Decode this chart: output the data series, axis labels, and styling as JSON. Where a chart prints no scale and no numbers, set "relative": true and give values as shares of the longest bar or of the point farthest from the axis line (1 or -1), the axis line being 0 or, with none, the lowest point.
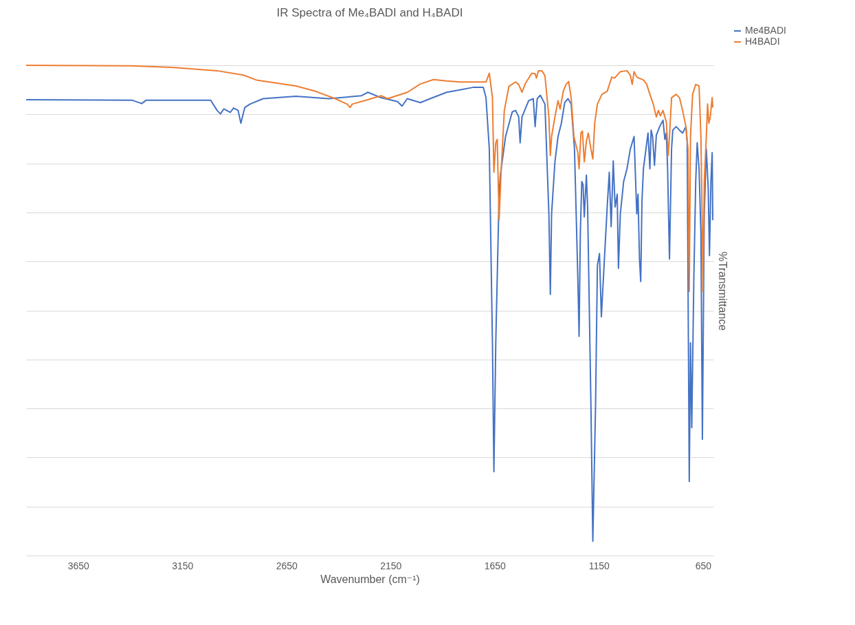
{
  "chart_data": {
    "type": "line",
    "title": "IR Spectra of Me₄BADI and H₄BADI",
    "xlabel": "Wavenumber (cm⁻¹)",
    "ylabel": "%Transmittance",
    "relative": true,
    "grid": "y",
    "legend": "right",
    "xlim": [
      3900,
      600
    ],
    "xticks": [
      3650,
      3150,
      2650,
      2150,
      1650,
      1150,
      650
    ],
    "series": [
      {
        "name": "Me4BADI",
        "color": "#4472c4",
        "x": [
          3900,
          3392,
          3345,
          3323,
          3014,
          2983,
          2967,
          2951,
          2920,
          2904,
          2882,
          2869,
          2850,
          2825,
          2762,
          2605,
          2447,
          2290,
          2259,
          2196,
          2117,
          2095,
          2070,
          2007,
          1960,
          1881,
          1818,
          1755,
          1705,
          1692,
          1676,
          1661,
          1654,
          1645,
          1629,
          1623,
          1598,
          1566,
          1550,
          1535,
          1528,
          1519,
          1487,
          1465,
          1456,
          1446,
          1431,
          1409,
          1390,
          1383,
          1377,
          1361,
          1346,
          1330,
          1314,
          1298,
          1283,
          1267,
          1251,
          1245,
          1239,
          1232,
          1226,
          1220,
          1210,
          1204,
          1188,
          1179,
          1166,
          1157,
          1147,
          1138,
          1125,
          1110,
          1100,
          1091,
          1081,
          1072,
          1062,
          1056,
          1047,
          1031,
          1015,
          999,
          990,
          981,
          968,
          962,
          955,
          949,
          943,
          936,
          924,
          914,
          905,
          899,
          892,
          883,
          874,
          858,
          842,
          833,
          826,
          820,
          811,
          801,
          795,
          779,
          763,
          748,
          732,
          726,
          716,
          710,
          704,
          694,
          685,
          678,
          669,
          660,
          653,
          644,
          634,
          625,
          619,
          612,
          606,
          603
        ],
        "values": [
          0.93,
          0.929,
          0.922,
          0.929,
          0.929,
          0.908,
          0.901,
          0.911,
          0.904,
          0.913,
          0.908,
          0.882,
          0.914,
          0.921,
          0.932,
          0.937,
          0.932,
          0.938,
          0.945,
          0.934,
          0.926,
          0.917,
          0.932,
          0.924,
          0.932,
          0.945,
          0.95,
          0.955,
          0.955,
          0.934,
          0.829,
          0.434,
          0.171,
          0.434,
          0.737,
          0.776,
          0.855,
          0.905,
          0.908,
          0.895,
          0.842,
          0.895,
          0.928,
          0.932,
          0.875,
          0.932,
          0.939,
          0.921,
          0.697,
          0.533,
          0.697,
          0.803,
          0.855,
          0.882,
          0.924,
          0.932,
          0.921,
          0.829,
          0.566,
          0.447,
          0.658,
          0.763,
          0.757,
          0.691,
          0.776,
          0.711,
          0.303,
          0.029,
          0.303,
          0.592,
          0.616,
          0.487,
          0.592,
          0.711,
          0.782,
          0.671,
          0.805,
          0.711,
          0.737,
          0.586,
          0.697,
          0.763,
          0.789,
          0.829,
          0.842,
          0.855,
          0.697,
          0.737,
          0.605,
          0.559,
          0.724,
          0.789,
          0.829,
          0.862,
          0.789,
          0.868,
          0.855,
          0.796,
          0.858,
          0.875,
          0.888,
          0.849,
          0.862,
          0.789,
          0.605,
          0.829,
          0.868,
          0.875,
          0.868,
          0.862,
          0.875,
          0.842,
          0.151,
          0.434,
          0.261,
          0.566,
          0.763,
          0.842,
          0.789,
          0.658,
          0.237,
          0.697,
          0.829,
          0.75,
          0.612,
          0.763,
          0.822,
          0.684
        ]
      },
      {
        "name": "H4BADI",
        "color": "#ed7d31",
        "x": [
          3900,
          3392,
          3203,
          2983,
          2857,
          2794,
          2699,
          2605,
          2510,
          2416,
          2359,
          2344,
          2334,
          2259,
          2196,
          2164,
          2070,
          2007,
          1944,
          1881,
          1818,
          1730,
          1692,
          1676,
          1661,
          1654,
          1645,
          1638,
          1629,
          1620,
          1604,
          1582,
          1550,
          1535,
          1519,
          1503,
          1472,
          1456,
          1450,
          1440,
          1424,
          1409,
          1390,
          1383,
          1377,
          1361,
          1346,
          1336,
          1321,
          1308,
          1295,
          1283,
          1270,
          1251,
          1245,
          1236,
          1229,
          1220,
          1210,
          1201,
          1188,
          1179,
          1170,
          1157,
          1135,
          1110,
          1088,
          1075,
          1047,
          1015,
          999,
          990,
          981,
          968,
          936,
          921,
          905,
          889,
          874,
          864,
          855,
          842,
          826,
          817,
          811,
          801,
          779,
          763,
          748,
          732,
          722,
          716,
          710,
          700,
          685,
          669,
          660,
          653,
          650,
          644,
          634,
          628,
          622,
          615,
          606,
          603
        ],
        "values": [
          1.0,
          0.999,
          0.996,
          0.989,
          0.98,
          0.97,
          0.964,
          0.958,
          0.947,
          0.932,
          0.921,
          0.914,
          0.921,
          0.93,
          0.938,
          0.932,
          0.945,
          0.962,
          0.971,
          0.968,
          0.966,
          0.966,
          0.966,
          0.984,
          0.934,
          0.782,
          0.842,
          0.849,
          0.684,
          0.776,
          0.908,
          0.957,
          0.966,
          0.961,
          0.945,
          0.963,
          0.984,
          0.983,
          0.974,
          0.989,
          0.989,
          0.979,
          0.895,
          0.816,
          0.855,
          0.895,
          0.928,
          0.911,
          0.947,
          0.961,
          0.967,
          0.934,
          0.855,
          0.822,
          0.789,
          0.862,
          0.866,
          0.803,
          0.845,
          0.862,
          0.829,
          0.809,
          0.882,
          0.921,
          0.941,
          0.947,
          0.976,
          0.974,
          0.987,
          0.989,
          0.98,
          0.961,
          0.987,
          0.976,
          0.97,
          0.962,
          0.941,
          0.921,
          0.895,
          0.908,
          0.897,
          0.908,
          0.884,
          0.816,
          0.855,
          0.934,
          0.941,
          0.934,
          0.908,
          0.875,
          0.829,
          0.539,
          0.855,
          0.941,
          0.961,
          0.958,
          0.855,
          0.658,
          0.539,
          0.763,
          0.855,
          0.921,
          0.882,
          0.895,
          0.934,
          0.914
        ]
      }
    ]
  }
}
